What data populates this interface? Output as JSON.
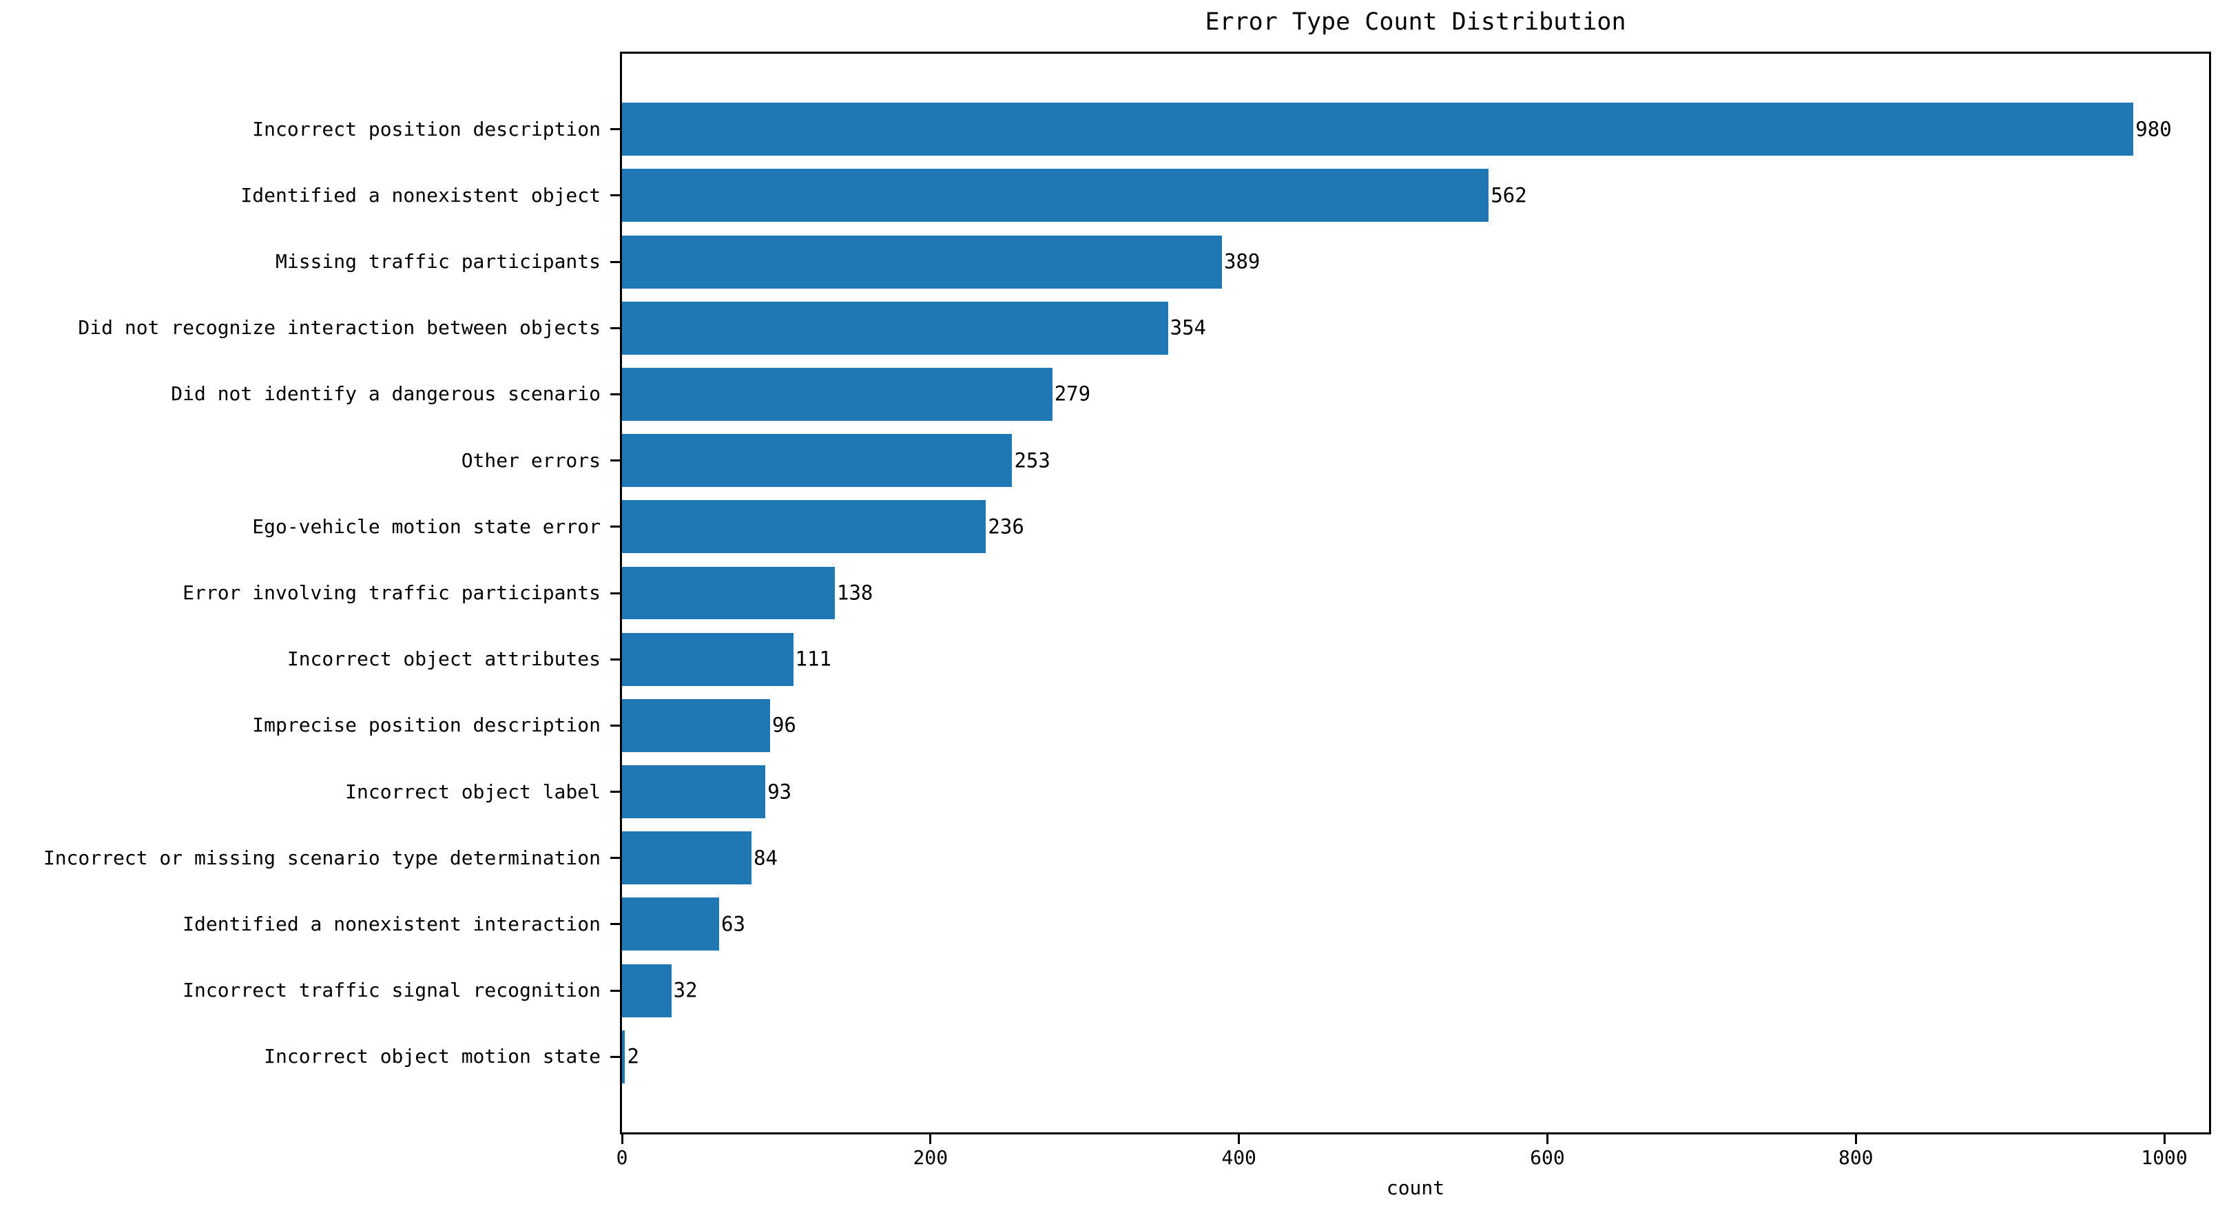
{
  "figure": {
    "background_color": "#ffffff",
    "text_color": "#000000"
  },
  "chart_data": {
    "type": "bar",
    "orientation": "horizontal",
    "title": "Error Type Count Distribution",
    "xlabel": "count",
    "ylabel": "",
    "categories": [
      "Incorrect position description",
      "Identified a nonexistent object",
      "Missing traffic participants",
      "Did not recognize interaction between objects",
      "Did not identify a dangerous scenario",
      "Other errors",
      "Ego-vehicle motion state error",
      "Error involving traffic participants",
      "Incorrect object attributes",
      "Imprecise position description",
      "Incorrect object label",
      "Incorrect or missing scenario type determination",
      "Identified a nonexistent interaction",
      "Incorrect traffic signal recognition",
      "Incorrect object motion state"
    ],
    "values": [
      980,
      562,
      389,
      354,
      279,
      253,
      236,
      138,
      111,
      96,
      93,
      84,
      63,
      32,
      2
    ],
    "value_labels": [
      "980",
      "562",
      "389",
      "354",
      "279",
      "253",
      "236",
      "138",
      "111",
      "96",
      "93",
      "84",
      "63",
      "32",
      "2"
    ],
    "xlim": [
      0,
      1029
    ],
    "xticks": [
      0,
      200,
      400,
      600,
      800,
      1000
    ],
    "xtick_labels": [
      "0",
      "200",
      "400",
      "600",
      "800",
      "1000"
    ],
    "grid": false,
    "legend": null,
    "bar_color": "#1f77b4"
  }
}
